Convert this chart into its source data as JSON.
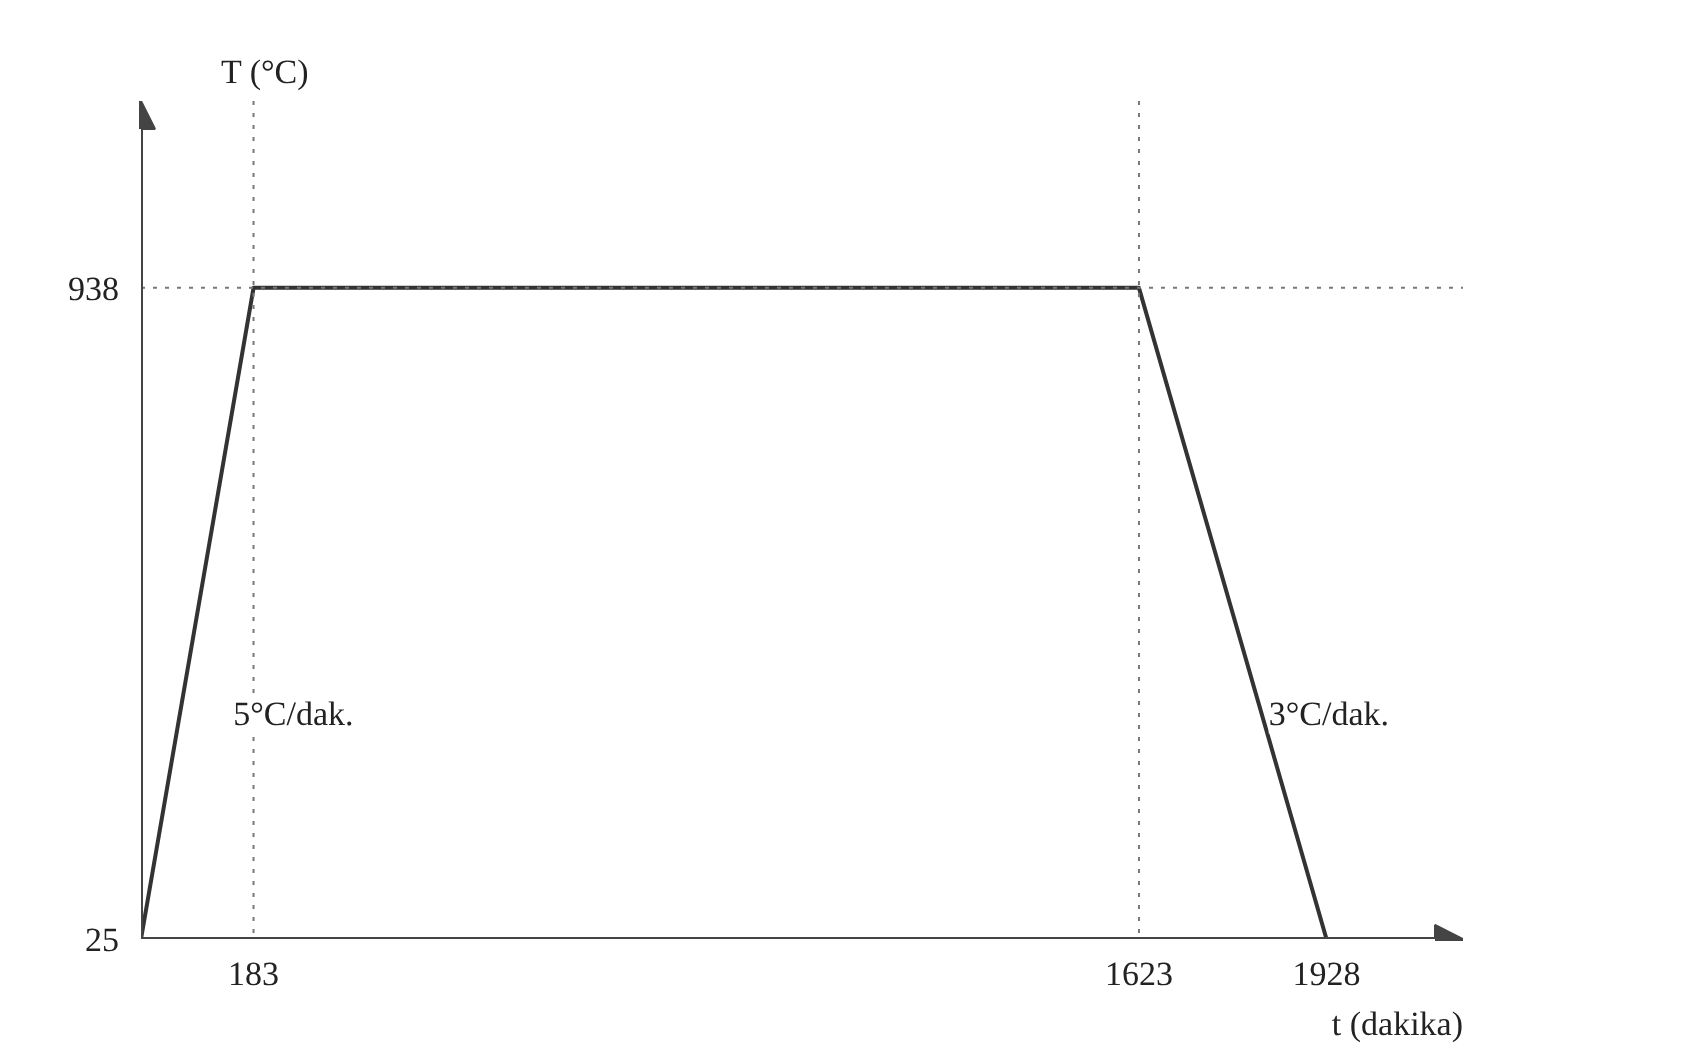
{
  "chart_data": {
    "type": "line",
    "xlabel": "t (dakika)",
    "ylabel": "T (°C)",
    "x": [
      0,
      183,
      1623,
      1928
    ],
    "series": [
      {
        "color": "#333333",
        "values": [
          25,
          938,
          938,
          25
        ]
      }
    ],
    "xlim": [
      0,
      2150
    ],
    "ylim": [
      25,
      1200
    ],
    "xticks": [
      183,
      1623,
      1928
    ],
    "yticks": [
      25,
      938
    ],
    "grid": false,
    "marker": "none",
    "line_style": "solid",
    "ref_lines": [
      {
        "axis": "x",
        "value": 183,
        "color": "#777777",
        "line_style": "dotted"
      },
      {
        "axis": "x",
        "value": 1623,
        "color": "#777777",
        "line_style": "dotted"
      },
      {
        "axis": "y",
        "value": 938,
        "color": "#777777",
        "line_style": "dotted"
      }
    ],
    "annotations": [
      "5°C/dak.",
      "3°C/dak."
    ]
  }
}
